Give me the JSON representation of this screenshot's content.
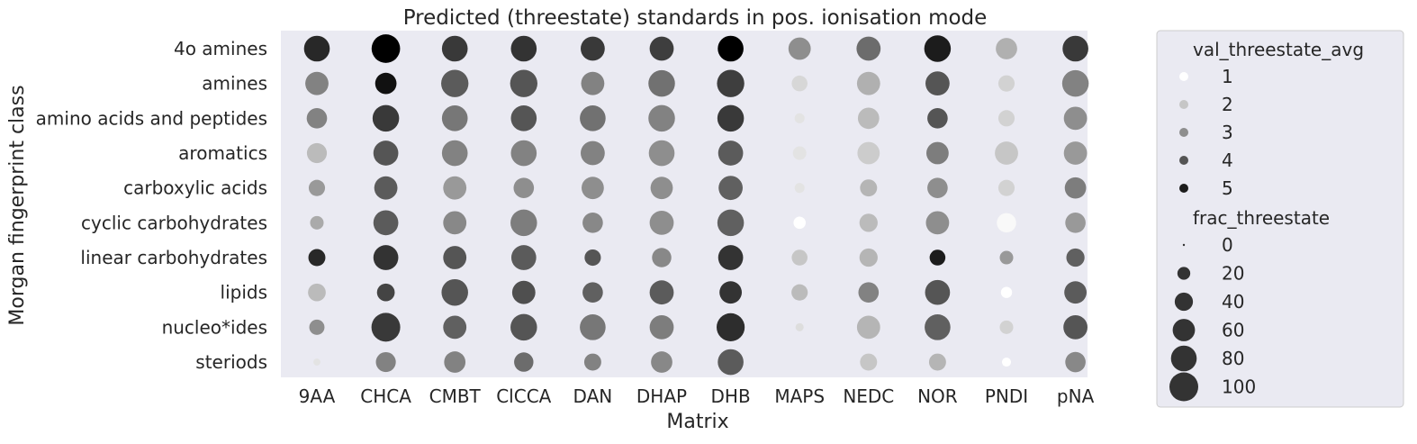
{
  "chart_data": {
    "type": "scatter",
    "subtype": "bubble-grid",
    "title": "Predicted (threestate) standards in pos. ionisation mode",
    "xlabel": "Matrix",
    "ylabel": "Morgan fingerprint class",
    "x_categories": [
      "9AA",
      "CHCA",
      "CMBT",
      "ClCCA",
      "DAN",
      "DHAP",
      "DHB",
      "MAPS",
      "NEDC",
      "NOR",
      "PNDI",
      "pNA"
    ],
    "y_categories": [
      "4o amines",
      "amines",
      "amino acids and peptides",
      "aromatics",
      "carboxylic acids",
      "cyclic carbohydrates",
      "linear carbohydrates",
      "lipids",
      "nucleo*ides",
      "steriods"
    ],
    "grid": false,
    "background_color": "#eaeaf2",
    "color_scale": {
      "low": "#ffffff",
      "high": "#000000",
      "min": 1,
      "max": 5.5
    },
    "legend": {
      "placement": "outside-right",
      "color_title": "val_threestate_avg",
      "color_entries": [
        1,
        2,
        3,
        4,
        5
      ],
      "size_title": "frac_threestate",
      "size_entries": [
        0,
        20,
        40,
        60,
        80,
        100
      ]
    },
    "points": [
      {
        "x": "9AA",
        "y": "4o amines",
        "color_value": 4.8,
        "size_value": 80
      },
      {
        "x": "9AA",
        "y": "amines",
        "color_value": 3.2,
        "size_value": 65
      },
      {
        "x": "9AA",
        "y": "amino acids and peptides",
        "color_value": 3.2,
        "size_value": 50
      },
      {
        "x": "9AA",
        "y": "aromatics",
        "color_value": 2.2,
        "size_value": 48
      },
      {
        "x": "9AA",
        "y": "carboxylic acids",
        "color_value": 2.8,
        "size_value": 32
      },
      {
        "x": "9AA",
        "y": "cyclic carbohydrates",
        "color_value": 2.5,
        "size_value": 22
      },
      {
        "x": "9AA",
        "y": "linear carbohydrates",
        "color_value": 4.8,
        "size_value": 35
      },
      {
        "x": "9AA",
        "y": "lipids",
        "color_value": 2.2,
        "size_value": 38
      },
      {
        "x": "9AA",
        "y": "nucleo*ides",
        "color_value": 3.0,
        "size_value": 28
      },
      {
        "x": "9AA",
        "y": "steriods",
        "color_value": 1.5,
        "size_value": 6
      },
      {
        "x": "CHCA",
        "y": "4o amines",
        "color_value": 5.5,
        "size_value": 98
      },
      {
        "x": "CHCA",
        "y": "amines",
        "color_value": 5.2,
        "size_value": 55
      },
      {
        "x": "CHCA",
        "y": "amino acids and peptides",
        "color_value": 4.5,
        "size_value": 85
      },
      {
        "x": "CHCA",
        "y": "aromatics",
        "color_value": 4.0,
        "size_value": 75
      },
      {
        "x": "CHCA",
        "y": "carboxylic acids",
        "color_value": 3.9,
        "size_value": 65
      },
      {
        "x": "CHCA",
        "y": "cyclic carbohydrates",
        "color_value": 3.9,
        "size_value": 75
      },
      {
        "x": "CHCA",
        "y": "linear carbohydrates",
        "color_value": 4.6,
        "size_value": 75
      },
      {
        "x": "CHCA",
        "y": "lipids",
        "color_value": 4.3,
        "size_value": 38
      },
      {
        "x": "CHCA",
        "y": "nucleo*ides",
        "color_value": 4.5,
        "size_value": 100
      },
      {
        "x": "CHCA",
        "y": "steriods",
        "color_value": 3.2,
        "size_value": 48
      },
      {
        "x": "CMBT",
        "y": "4o amines",
        "color_value": 4.5,
        "size_value": 80
      },
      {
        "x": "CMBT",
        "y": "amines",
        "color_value": 3.9,
        "size_value": 90
      },
      {
        "x": "CMBT",
        "y": "amino acids and peptides",
        "color_value": 3.4,
        "size_value": 80
      },
      {
        "x": "CMBT",
        "y": "aromatics",
        "color_value": 3.2,
        "size_value": 80
      },
      {
        "x": "CMBT",
        "y": "carboxylic acids",
        "color_value": 2.8,
        "size_value": 65
      },
      {
        "x": "CMBT",
        "y": "cyclic carbohydrates",
        "color_value": 3.1,
        "size_value": 65
      },
      {
        "x": "CMBT",
        "y": "linear carbohydrates",
        "color_value": 4.0,
        "size_value": 65
      },
      {
        "x": "CMBT",
        "y": "lipids",
        "color_value": 4.0,
        "size_value": 85
      },
      {
        "x": "CMBT",
        "y": "nucleo*ides",
        "color_value": 3.8,
        "size_value": 65
      },
      {
        "x": "CMBT",
        "y": "steriods",
        "color_value": 3.2,
        "size_value": 55
      },
      {
        "x": "ClCCA",
        "y": "4o amines",
        "color_value": 4.6,
        "size_value": 80
      },
      {
        "x": "ClCCA",
        "y": "amines",
        "color_value": 4.0,
        "size_value": 90
      },
      {
        "x": "ClCCA",
        "y": "amino acids and peptides",
        "color_value": 4.0,
        "size_value": 80
      },
      {
        "x": "ClCCA",
        "y": "aromatics",
        "color_value": 3.2,
        "size_value": 80
      },
      {
        "x": "ClCCA",
        "y": "carboxylic acids",
        "color_value": 3.0,
        "size_value": 50
      },
      {
        "x": "ClCCA",
        "y": "cyclic carbohydrates",
        "color_value": 3.3,
        "size_value": 85
      },
      {
        "x": "ClCCA",
        "y": "linear carbohydrates",
        "color_value": 3.9,
        "size_value": 75
      },
      {
        "x": "ClCCA",
        "y": "lipids",
        "color_value": 4.1,
        "size_value": 65
      },
      {
        "x": "ClCCA",
        "y": "nucleo*ides",
        "color_value": 4.0,
        "size_value": 85
      },
      {
        "x": "ClCCA",
        "y": "steriods",
        "color_value": 3.6,
        "size_value": 45
      },
      {
        "x": "DAN",
        "y": "4o amines",
        "color_value": 4.5,
        "size_value": 70
      },
      {
        "x": "DAN",
        "y": "amines",
        "color_value": 3.2,
        "size_value": 65
      },
      {
        "x": "DAN",
        "y": "amino acids and peptides",
        "color_value": 3.5,
        "size_value": 80
      },
      {
        "x": "DAN",
        "y": "aromatics",
        "color_value": 3.2,
        "size_value": 70
      },
      {
        "x": "DAN",
        "y": "carboxylic acids",
        "color_value": 3.0,
        "size_value": 60
      },
      {
        "x": "DAN",
        "y": "cyclic carbohydrates",
        "color_value": 3.1,
        "size_value": 50
      },
      {
        "x": "DAN",
        "y": "linear carbohydrates",
        "color_value": 4.0,
        "size_value": 32
      },
      {
        "x": "DAN",
        "y": "lipids",
        "color_value": 3.8,
        "size_value": 50
      },
      {
        "x": "DAN",
        "y": "nucleo*ides",
        "color_value": 3.4,
        "size_value": 80
      },
      {
        "x": "DAN",
        "y": "steriods",
        "color_value": 3.2,
        "size_value": 35
      },
      {
        "x": "DHAP",
        "y": "4o amines",
        "color_value": 4.4,
        "size_value": 70
      },
      {
        "x": "DHAP",
        "y": "amines",
        "color_value": 3.5,
        "size_value": 85
      },
      {
        "x": "DHAP",
        "y": "amino acids and peptides",
        "color_value": 3.2,
        "size_value": 85
      },
      {
        "x": "DHAP",
        "y": "aromatics",
        "color_value": 3.0,
        "size_value": 80
      },
      {
        "x": "DHAP",
        "y": "carboxylic acids",
        "color_value": 3.0,
        "size_value": 60
      },
      {
        "x": "DHAP",
        "y": "cyclic carbohydrates",
        "color_value": 3.0,
        "size_value": 70
      },
      {
        "x": "DHAP",
        "y": "linear carbohydrates",
        "color_value": 3.1,
        "size_value": 45
      },
      {
        "x": "DHAP",
        "y": "lipids",
        "color_value": 3.9,
        "size_value": 70
      },
      {
        "x": "DHAP",
        "y": "nucleo*ides",
        "color_value": 3.3,
        "size_value": 70
      },
      {
        "x": "DHAP",
        "y": "steriods",
        "color_value": 3.1,
        "size_value": 55
      },
      {
        "x": "DHB",
        "y": "4o amines",
        "color_value": 5.5,
        "size_value": 80
      },
      {
        "x": "DHB",
        "y": "amines",
        "color_value": 4.4,
        "size_value": 90
      },
      {
        "x": "DHB",
        "y": "amino acids and peptides",
        "color_value": 4.5,
        "size_value": 85
      },
      {
        "x": "DHB",
        "y": "aromatics",
        "color_value": 3.9,
        "size_value": 75
      },
      {
        "x": "DHB",
        "y": "carboxylic acids",
        "color_value": 3.8,
        "size_value": 70
      },
      {
        "x": "DHB",
        "y": "cyclic carbohydrates",
        "color_value": 3.8,
        "size_value": 85
      },
      {
        "x": "DHB",
        "y": "linear carbohydrates",
        "color_value": 4.6,
        "size_value": 75
      },
      {
        "x": "DHB",
        "y": "lipids",
        "color_value": 4.6,
        "size_value": 60
      },
      {
        "x": "DHB",
        "y": "nucleo*ides",
        "color_value": 4.7,
        "size_value": 95
      },
      {
        "x": "DHB",
        "y": "steriods",
        "color_value": 3.9,
        "size_value": 80
      },
      {
        "x": "MAPS",
        "y": "4o amines",
        "color_value": 3.0,
        "size_value": 60
      },
      {
        "x": "MAPS",
        "y": "amines",
        "color_value": 1.7,
        "size_value": 30
      },
      {
        "x": "MAPS",
        "y": "amino acids and peptides",
        "color_value": 1.5,
        "size_value": 12
      },
      {
        "x": "MAPS",
        "y": "aromatics",
        "color_value": 1.5,
        "size_value": 22
      },
      {
        "x": "MAPS",
        "y": "carboxylic acids",
        "color_value": 1.5,
        "size_value": 12
      },
      {
        "x": "MAPS",
        "y": "cyclic carbohydrates",
        "color_value": 1.0,
        "size_value": 18
      },
      {
        "x": "MAPS",
        "y": "linear carbohydrates",
        "color_value": 2.0,
        "size_value": 30
      },
      {
        "x": "MAPS",
        "y": "lipids",
        "color_value": 2.2,
        "size_value": 32
      },
      {
        "x": "MAPS",
        "y": "nucleo*ides",
        "color_value": 1.6,
        "size_value": 8
      },
      {
        "x": "NEDC",
        "y": "4o amines",
        "color_value": 3.6,
        "size_value": 70
      },
      {
        "x": "NEDC",
        "y": "amines",
        "color_value": 2.4,
        "size_value": 65
      },
      {
        "x": "NEDC",
        "y": "amino acids and peptides",
        "color_value": 2.2,
        "size_value": 55
      },
      {
        "x": "NEDC",
        "y": "aromatics",
        "color_value": 1.9,
        "size_value": 60
      },
      {
        "x": "NEDC",
        "y": "carboxylic acids",
        "color_value": 2.3,
        "size_value": 35
      },
      {
        "x": "NEDC",
        "y": "cyclic carbohydrates",
        "color_value": 2.2,
        "size_value": 40
      },
      {
        "x": "NEDC",
        "y": "linear carbohydrates",
        "color_value": 2.3,
        "size_value": 40
      },
      {
        "x": "NEDC",
        "y": "lipids",
        "color_value": 3.2,
        "size_value": 50
      },
      {
        "x": "NEDC",
        "y": "nucleo*ides",
        "color_value": 2.3,
        "size_value": 65
      },
      {
        "x": "NEDC",
        "y": "steriods",
        "color_value": 2.0,
        "size_value": 35
      },
      {
        "x": "NOR",
        "y": "4o amines",
        "color_value": 5.0,
        "size_value": 85
      },
      {
        "x": "NOR",
        "y": "amines",
        "color_value": 4.0,
        "size_value": 70
      },
      {
        "x": "NOR",
        "y": "amino acids and peptides",
        "color_value": 4.0,
        "size_value": 50
      },
      {
        "x": "NOR",
        "y": "aromatics",
        "color_value": 3.3,
        "size_value": 60
      },
      {
        "x": "NOR",
        "y": "carboxylic acids",
        "color_value": 3.0,
        "size_value": 50
      },
      {
        "x": "NOR",
        "y": "cyclic carbohydrates",
        "color_value": 3.0,
        "size_value": 65
      },
      {
        "x": "NOR",
        "y": "linear carbohydrates",
        "color_value": 5.0,
        "size_value": 30
      },
      {
        "x": "NOR",
        "y": "lipids",
        "color_value": 4.0,
        "size_value": 75
      },
      {
        "x": "NOR",
        "y": "nucleo*ides",
        "color_value": 3.8,
        "size_value": 80
      },
      {
        "x": "NOR",
        "y": "steriods",
        "color_value": 2.3,
        "size_value": 35
      },
      {
        "x": "PNDI",
        "y": "4o amines",
        "color_value": 2.4,
        "size_value": 55
      },
      {
        "x": "PNDI",
        "y": "amines",
        "color_value": 1.8,
        "size_value": 32
      },
      {
        "x": "PNDI",
        "y": "amino acids and peptides",
        "color_value": 1.8,
        "size_value": 32
      },
      {
        "x": "PNDI",
        "y": "aromatics",
        "color_value": 2.0,
        "size_value": 65
      },
      {
        "x": "PNDI",
        "y": "carboxylic acids",
        "color_value": 1.8,
        "size_value": 32
      },
      {
        "x": "PNDI",
        "y": "cyclic carbohydrates",
        "color_value": 1.1,
        "size_value": 45
      },
      {
        "x": "PNDI",
        "y": "linear carbohydrates",
        "color_value": 2.8,
        "size_value": 22
      },
      {
        "x": "PNDI",
        "y": "lipids",
        "color_value": 1.0,
        "size_value": 15
      },
      {
        "x": "PNDI",
        "y": "nucleo*ides",
        "color_value": 1.8,
        "size_value": 22
      },
      {
        "x": "PNDI",
        "y": "steriods",
        "color_value": 1.0,
        "size_value": 10
      },
      {
        "x": "pNA",
        "y": "4o amines",
        "color_value": 4.5,
        "size_value": 80
      },
      {
        "x": "pNA",
        "y": "amines",
        "color_value": 3.2,
        "size_value": 85
      },
      {
        "x": "pNA",
        "y": "amino acids and peptides",
        "color_value": 3.0,
        "size_value": 65
      },
      {
        "x": "pNA",
        "y": "aromatics",
        "color_value": 2.8,
        "size_value": 65
      },
      {
        "x": "pNA",
        "y": "carboxylic acids",
        "color_value": 3.3,
        "size_value": 55
      },
      {
        "x": "pNA",
        "y": "cyclic carbohydrates",
        "color_value": 2.8,
        "size_value": 50
      },
      {
        "x": "pNA",
        "y": "linear carbohydrates",
        "color_value": 3.8,
        "size_value": 40
      },
      {
        "x": "pNA",
        "y": "lipids",
        "color_value": 3.9,
        "size_value": 60
      },
      {
        "x": "pNA",
        "y": "nucleo*ides",
        "color_value": 4.0,
        "size_value": 70
      },
      {
        "x": "pNA",
        "y": "steriods",
        "color_value": 3.1,
        "size_value": 50
      }
    ]
  }
}
